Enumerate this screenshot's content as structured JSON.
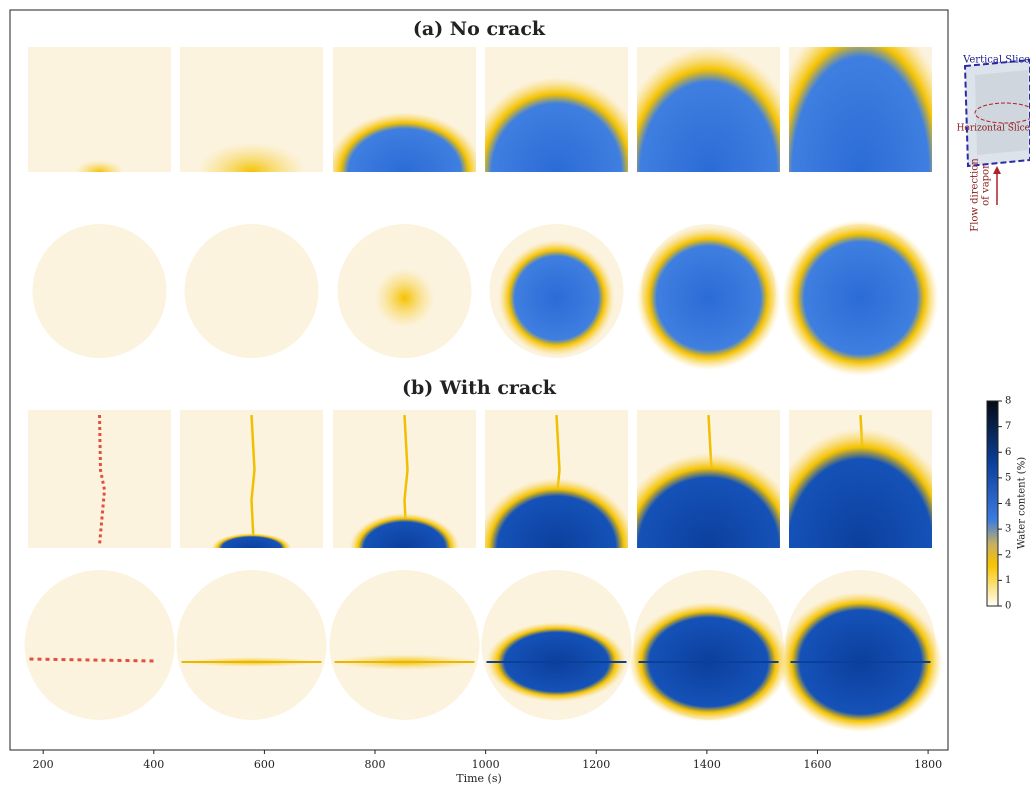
{
  "chart_data": {
    "type": "image-panels",
    "panels": [
      {
        "title": "(a) No crack"
      },
      {
        "title": "(b) With crack"
      }
    ],
    "xlabel": "Time (s)",
    "xlim": [
      140,
      1836
    ],
    "xticks": [
      200,
      400,
      600,
      800,
      1000,
      1200,
      1400,
      1600,
      1800
    ],
    "colorbar": {
      "label": "Water content (%)",
      "lim": [
        0,
        8
      ],
      "ticks": [
        0,
        1,
        2,
        3,
        4,
        5,
        6,
        7,
        8
      ]
    },
    "inset": {
      "labels": [
        "Vertical Slice",
        "Horizontal Slice",
        "Flow direction",
        "of vapor"
      ]
    }
  }
}
